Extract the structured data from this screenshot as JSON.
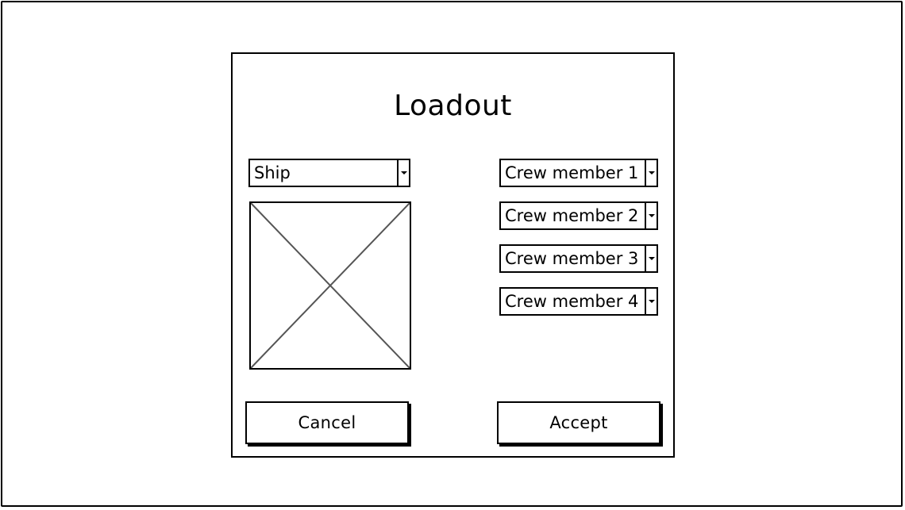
{
  "dialog": {
    "title": "Loadout"
  },
  "ship_select": {
    "selected": "Ship"
  },
  "ship_image": {
    "icon": "image-placeholder-icon"
  },
  "crew_selects": [
    {
      "selected": "Crew member 1"
    },
    {
      "selected": "Crew member 2"
    },
    {
      "selected": "Crew member 3"
    },
    {
      "selected": "Crew member 4"
    }
  ],
  "buttons": {
    "cancel_label": "Cancel",
    "accept_label": "Accept"
  },
  "colors": {
    "stroke": "#000000",
    "placeholder_cross": "#555555",
    "background": "#ffffff"
  }
}
